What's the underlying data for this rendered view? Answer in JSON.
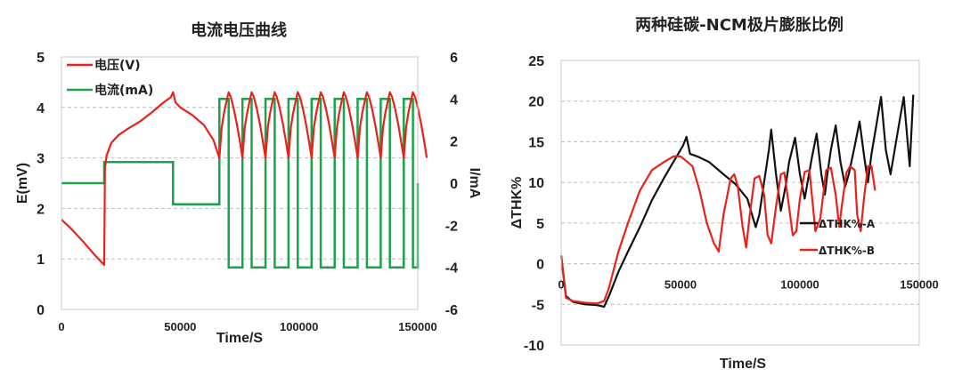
{
  "chart_data": [
    {
      "type": "line",
      "title": "电流电压曲线",
      "xlabel": "Time/S",
      "ylabel": "E(mV)",
      "y2label": "I/mA",
      "xlim": [
        0,
        150000
      ],
      "ylim": [
        0,
        5
      ],
      "y2lim": [
        -6,
        6
      ],
      "xticks": [
        "0",
        "50000",
        "100000",
        "150000"
      ],
      "yticks": [
        "0",
        "1",
        "2",
        "3",
        "4",
        "5"
      ],
      "y2ticks": [
        "-6",
        "-4",
        "-2",
        "0",
        "2",
        "4",
        "6"
      ],
      "grid": "horizontal dashed",
      "legend_position": "top-left",
      "colors": {
        "voltage": "#e8211b",
        "current": "#1aa34a"
      },
      "series": [
        {
          "name": "电压(V)",
          "axis": "left",
          "x": [
            0,
            4000,
            9000,
            14000,
            18000,
            18300,
            19000,
            21000,
            24000,
            28000,
            33000,
            38000,
            43000,
            46000,
            47000,
            48000,
            50000,
            55000,
            60000,
            64000,
            66500
          ],
          "y": [
            1.78,
            1.6,
            1.35,
            1.08,
            0.88,
            2.8,
            3.05,
            3.3,
            3.45,
            3.58,
            3.72,
            3.9,
            4.1,
            4.2,
            4.3,
            4.1,
            4.0,
            3.85,
            3.65,
            3.35,
            3.0
          ]
        },
        {
          "name": "电流(mA)",
          "axis": "right",
          "x": [
            0,
            18000,
            18000,
            47000,
            47000,
            66500
          ],
          "y": [
            0,
            0,
            1,
            1,
            -1,
            -1
          ]
        }
      ],
      "cycles": {
        "start": 66500,
        "period": 9700,
        "count": 9,
        "charge_fraction": 0.4,
        "voltage_min": 3.0,
        "voltage_max": 4.3,
        "current_charge": 4,
        "current_discharge": -4
      }
    },
    {
      "type": "line",
      "title": "两种硅碳-NCM极片膨胀比例",
      "xlabel": "Time/S",
      "ylabel": "ΔTHK%",
      "xlim": [
        0,
        150000
      ],
      "ylim": [
        -10,
        25
      ],
      "xticks": [
        "0",
        "50000",
        "100000",
        "150000"
      ],
      "yticks": [
        "-10",
        "-5",
        "0",
        "5",
        "10",
        "15",
        "20",
        "25"
      ],
      "grid": "horizontal dashed",
      "legend_position": "right",
      "series": [
        {
          "name": "ΔTHK%-A",
          "color": "#111111",
          "x": [
            0,
            2000,
            5000,
            10000,
            15000,
            18000,
            20000,
            24000,
            28000,
            33000,
            38000,
            43000,
            48000,
            51000,
            52500,
            54000,
            57000,
            62000,
            68000,
            73000,
            78000,
            81500,
            83000,
            85000,
            87000,
            88000,
            90000,
            92000,
            94000,
            95500,
            98000,
            100000,
            102000,
            103500,
            105000,
            107000,
            109000,
            110500,
            111500,
            113000,
            115000,
            117000,
            119000,
            120500,
            123000,
            125000,
            127000,
            128500,
            130000,
            132000,
            134000,
            136000,
            138000,
            140000,
            142000,
            143500,
            146000,
            147500
          ],
          "y": [
            1,
            -4,
            -4.7,
            -5,
            -5.1,
            -5.3,
            -4,
            -1,
            1.5,
            4.5,
            7.8,
            10.5,
            13,
            14.5,
            15.6,
            13.5,
            13.2,
            12.5,
            11,
            9.8,
            8,
            4.5,
            6,
            10,
            14,
            16.5,
            11,
            6.5,
            9.5,
            12.5,
            15.5,
            11,
            8,
            10.5,
            13,
            16,
            11,
            8.5,
            11,
            14,
            17,
            12.5,
            9.5,
            11,
            14.5,
            17.5,
            13,
            10,
            13.5,
            17,
            20.5,
            14,
            11,
            14.5,
            18,
            20.5,
            12,
            20.8
          ]
        },
        {
          "name": "ΔTHK%-B",
          "color": "#e8211b",
          "x": [
            0,
            2000,
            5000,
            10000,
            15000,
            18000,
            20000,
            24000,
            28000,
            33000,
            38000,
            43000,
            47000,
            50000,
            53000,
            55000,
            58000,
            61000,
            64000,
            66000,
            68000,
            71000,
            72500,
            74000,
            76000,
            77500,
            79000,
            81000,
            83000,
            85000,
            86500,
            88000,
            90000,
            92000,
            93500,
            95000,
            97000,
            98500,
            100000,
            102000,
            104000,
            105000,
            106500,
            108500,
            110000,
            111000,
            113000,
            115000,
            116500,
            117500,
            119500,
            121000,
            123000,
            124000,
            125500,
            127000,
            128500,
            130000,
            131500
          ],
          "y": [
            1,
            -4.2,
            -4.6,
            -4.8,
            -4.9,
            -4.6,
            -3,
            1.5,
            5,
            9,
            11.5,
            12.5,
            13.2,
            13.2,
            12.5,
            12,
            9,
            5,
            2.5,
            1.5,
            6,
            10.5,
            11,
            9.5,
            4.5,
            2,
            6,
            10.5,
            10.8,
            8.5,
            3.5,
            2.5,
            7,
            11,
            11.2,
            8,
            3.5,
            4,
            8,
            11.3,
            11.5,
            8.5,
            4,
            5.5,
            9,
            11.5,
            11.8,
            8.5,
            4.5,
            7,
            11.2,
            12,
            11.5,
            6,
            4,
            8.5,
            12,
            12,
            9
          ]
        }
      ]
    }
  ]
}
